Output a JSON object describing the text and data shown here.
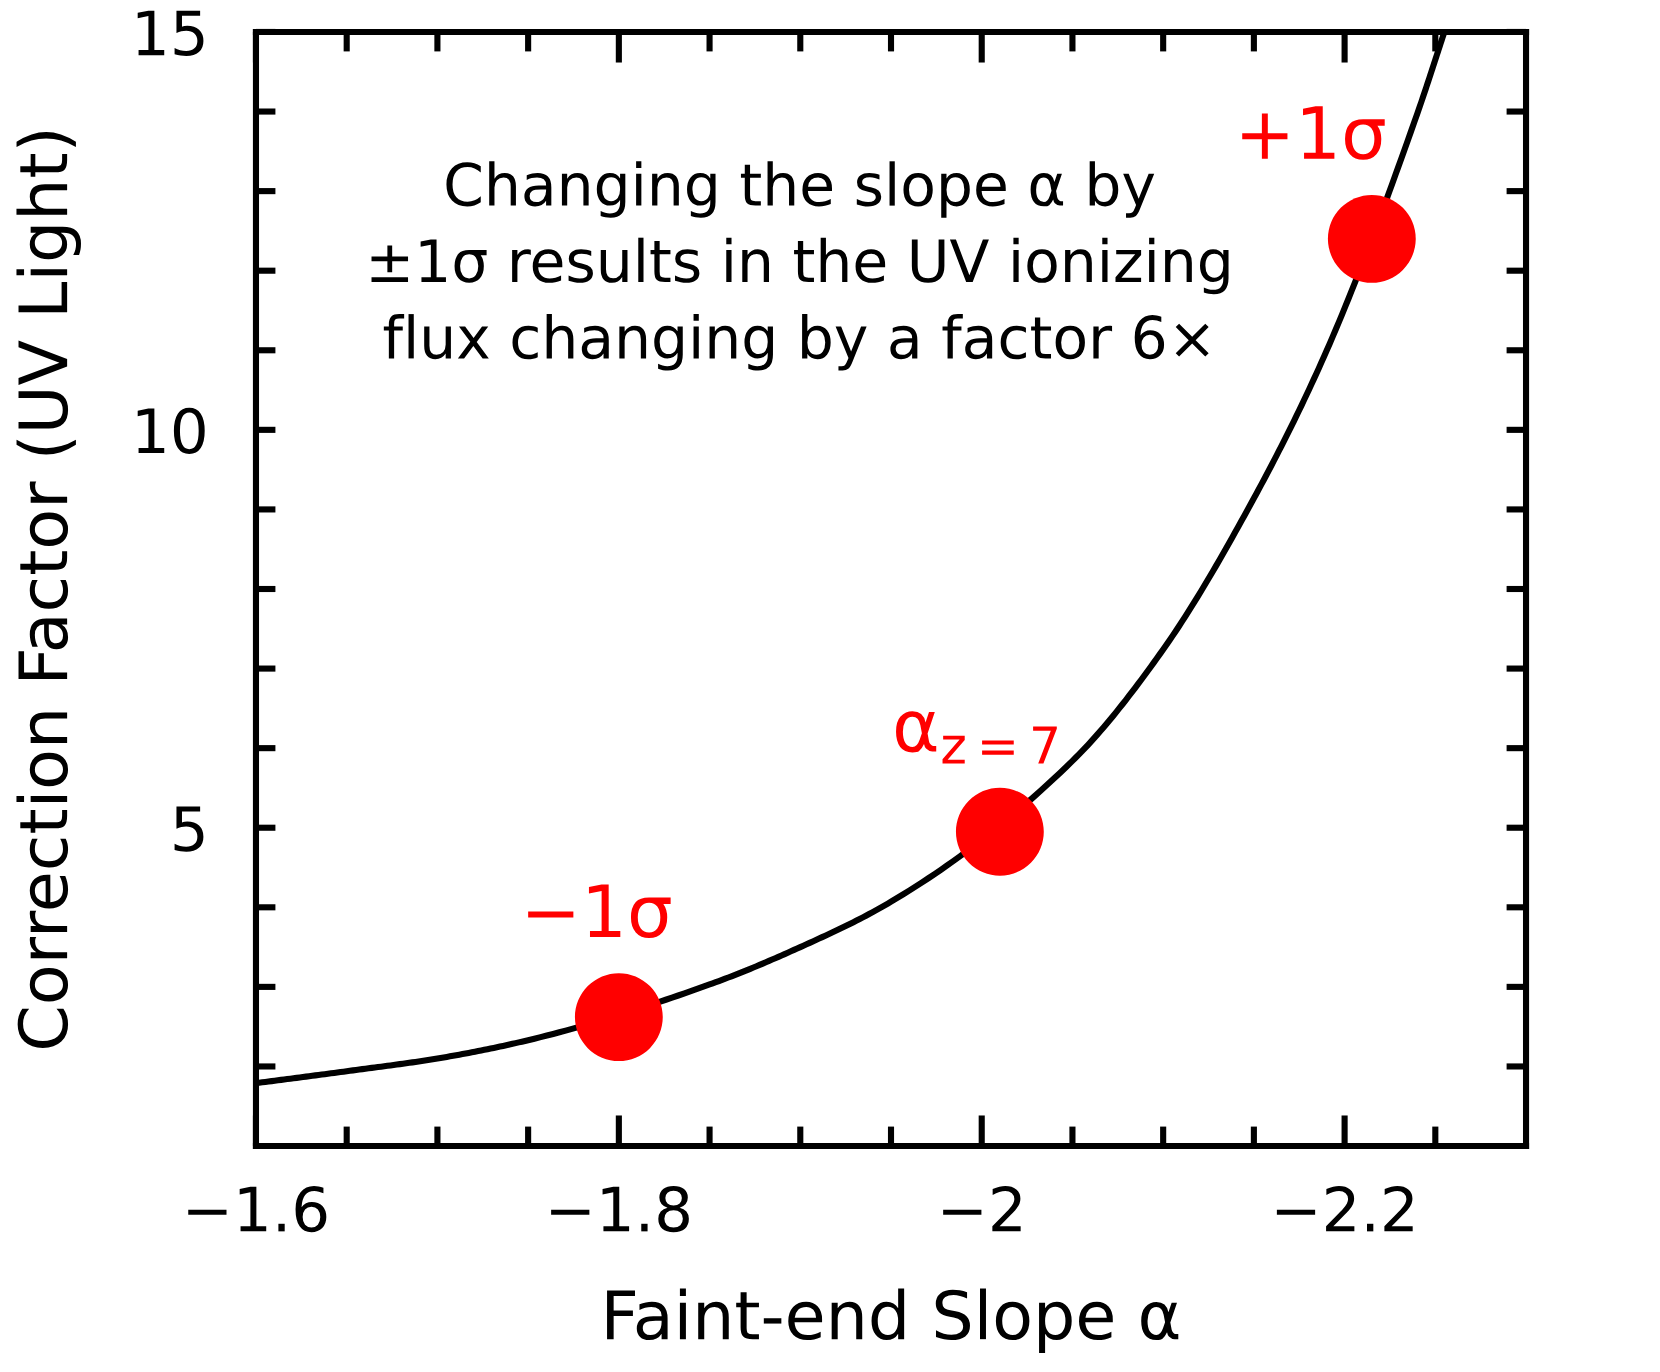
{
  "chart_data": {
    "type": "line",
    "xlabel": "Faint-end Slope α",
    "ylabel": "Correction Factor (UV Light)",
    "xlim": [
      -1.6,
      -2.3
    ],
    "ylim": [
      1,
      15
    ],
    "xticks": [
      {
        "value": -1.6,
        "label": "−1.6"
      },
      {
        "value": -1.65,
        "label": null
      },
      {
        "value": -1.7,
        "label": null
      },
      {
        "value": -1.75,
        "label": null
      },
      {
        "value": -1.8,
        "label": "−1.8"
      },
      {
        "value": -1.85,
        "label": null
      },
      {
        "value": -1.9,
        "label": null
      },
      {
        "value": -1.95,
        "label": null
      },
      {
        "value": -2,
        "label": "−2"
      },
      {
        "value": -2.05,
        "label": null
      },
      {
        "value": -2.1,
        "label": null
      },
      {
        "value": -2.15,
        "label": null
      },
      {
        "value": -2.2,
        "label": "−2.2"
      },
      {
        "value": -2.25,
        "label": null
      }
    ],
    "yticks": [
      {
        "value": 2,
        "label": null
      },
      {
        "value": 3,
        "label": null
      },
      {
        "value": 4,
        "label": null
      },
      5,
      {
        "value": 6,
        "label": null
      },
      {
        "value": 7,
        "label": null
      },
      {
        "value": 8,
        "label": null
      },
      {
        "value": 9,
        "label": null
      },
      10,
      {
        "value": 11,
        "label": null
      },
      {
        "value": 12,
        "label": null
      },
      {
        "value": 13,
        "label": null
      },
      {
        "value": 14,
        "label": null
      },
      15
    ],
    "series": [
      {
        "color": "#000000",
        "x": [
          -1.6,
          -1.65,
          -1.7,
          -1.75,
          -1.85,
          -1.9,
          -1.95,
          -2.05,
          -2.1,
          -2.15,
          -2.19,
          -2.24,
          -2.255
        ],
        "values": [
          1.79,
          1.94,
          2.1,
          2.33,
          3.03,
          3.5,
          4.07,
          5.84,
          7.24,
          9.14,
          10.99,
          13.97,
          15
        ]
      },
      {
        "type": "scatter",
        "color": "#ff0000",
        "marker": "circle",
        "x": [
          -1.8,
          -2.01,
          -2.215
        ],
        "values": [
          2.62,
          4.95,
          12.4
        ]
      }
    ],
    "annotations": [
      {
        "text": "−1σ",
        "x": -1.8,
        "y": 2.62
      },
      {
        "text": "α$_{z=7}$",
        "x": -2.01,
        "y": 4.95
      },
      {
        "text": "+1σ",
        "x": -2.215,
        "y": 12.4
      },
      "Changing the slope α by\n±1σ results in the UV ionizing\nflux changing by a factor 6×"
    ]
  }
}
